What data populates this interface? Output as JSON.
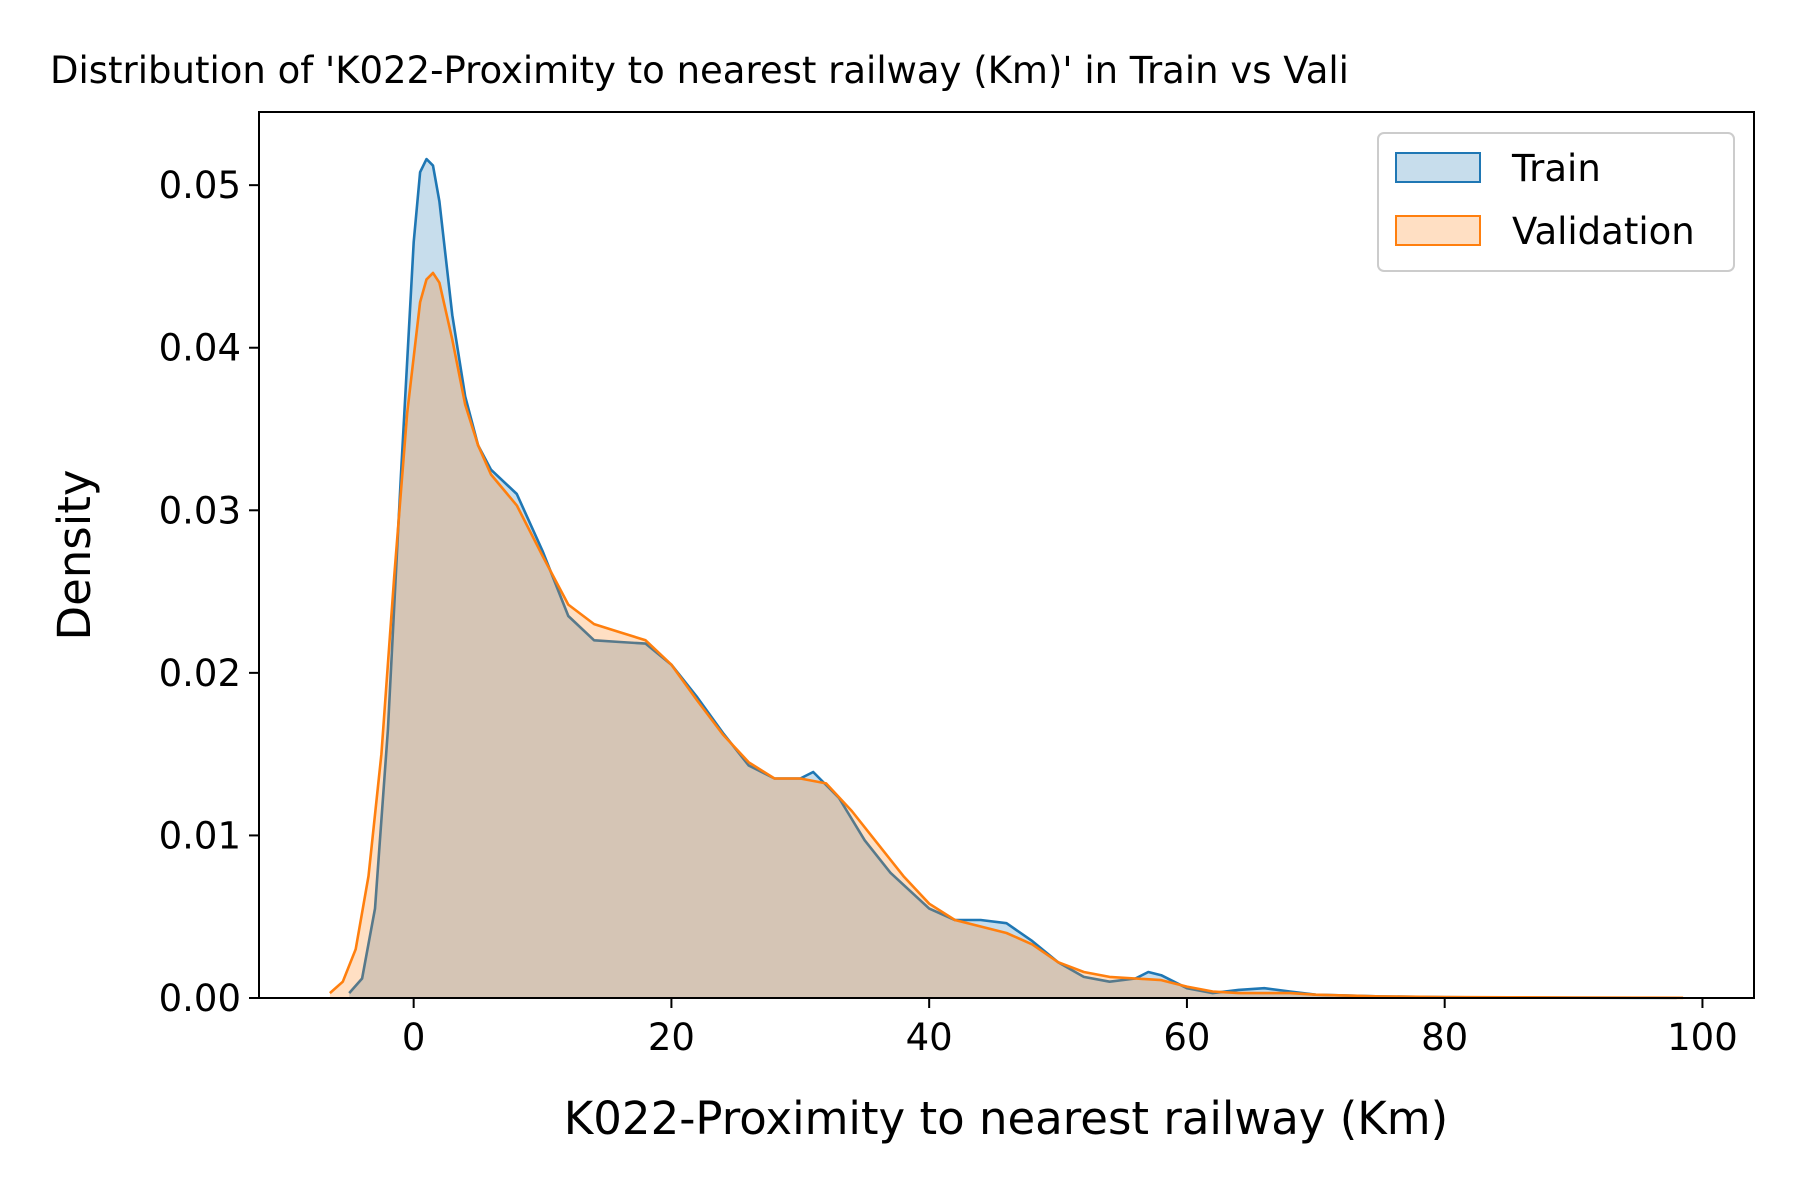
{
  "chart_data": {
    "type": "area",
    "title": "Distribution of 'K022-Proximity to nearest railway (Km)' in Train vs Vali",
    "xlabel": "K022-Proximity to nearest railway (Km)",
    "ylabel": "Density",
    "xlim": [
      -12,
      104
    ],
    "ylim": [
      0,
      0.0545
    ],
    "xticks": [
      0,
      20,
      40,
      60,
      80,
      100
    ],
    "yticks": [
      0.0,
      0.01,
      0.02,
      0.03,
      0.04,
      0.05
    ],
    "xtick_labels": [
      "0",
      "20",
      "40",
      "60",
      "80",
      "100"
    ],
    "ytick_labels": [
      "0.00",
      "0.01",
      "0.02",
      "0.03",
      "0.04",
      "0.05"
    ],
    "grid": false,
    "legend_position": "top-right",
    "series": [
      {
        "name": "Train",
        "color": "#1f77b4",
        "fill": "#1f77b4",
        "x": [
          -5,
          -4,
          -3,
          -2,
          -1,
          0,
          0.5,
          1,
          1.5,
          2,
          3,
          4,
          5,
          6,
          8,
          10,
          12,
          14,
          16,
          18,
          20,
          22,
          24,
          26,
          28,
          30,
          31,
          33,
          35,
          37,
          40,
          42,
          44,
          46,
          48,
          50,
          52,
          54,
          56,
          57,
          58,
          60,
          62,
          64,
          66,
          68,
          70,
          75,
          80,
          85,
          90,
          95,
          98
        ],
        "y": [
          0.0003,
          0.0012,
          0.0055,
          0.0165,
          0.032,
          0.0465,
          0.0508,
          0.0516,
          0.0512,
          0.049,
          0.042,
          0.037,
          0.034,
          0.0325,
          0.031,
          0.0275,
          0.0235,
          0.022,
          0.0219,
          0.0218,
          0.0205,
          0.0185,
          0.0163,
          0.0143,
          0.0135,
          0.0135,
          0.0139,
          0.0123,
          0.0097,
          0.0077,
          0.0055,
          0.0048,
          0.0048,
          0.0046,
          0.0035,
          0.0022,
          0.0013,
          0.001,
          0.0012,
          0.0016,
          0.0014,
          0.0006,
          0.0003,
          0.0005,
          0.0006,
          0.0004,
          0.0002,
          0.0001,
          5e-05,
          3e-05,
          2e-05,
          1e-05,
          1e-05
        ]
      },
      {
        "name": "Validation",
        "color": "#ff7f0e",
        "fill": "#ff7f0e",
        "x": [
          -6.5,
          -5.5,
          -4.5,
          -3.5,
          -2.5,
          -1.5,
          -0.5,
          0.5,
          1,
          1.5,
          2,
          3,
          4,
          5,
          6,
          8,
          10,
          12,
          14,
          16,
          18,
          20,
          22,
          24,
          26,
          28,
          30,
          32,
          34,
          36,
          38,
          40,
          42,
          44,
          46,
          48,
          50,
          52,
          54,
          56,
          58,
          60,
          62,
          64,
          66,
          68,
          70,
          75,
          80,
          85,
          90,
          95,
          98.5
        ],
        "y": [
          0.0003,
          0.001,
          0.003,
          0.0075,
          0.015,
          0.026,
          0.036,
          0.0428,
          0.0442,
          0.0446,
          0.044,
          0.0405,
          0.0365,
          0.034,
          0.0322,
          0.0303,
          0.0272,
          0.0242,
          0.023,
          0.0225,
          0.022,
          0.0205,
          0.0183,
          0.0162,
          0.0145,
          0.0135,
          0.0135,
          0.0132,
          0.0115,
          0.0095,
          0.0075,
          0.0058,
          0.0048,
          0.0044,
          0.004,
          0.0033,
          0.0022,
          0.0016,
          0.0013,
          0.0012,
          0.0011,
          0.0007,
          0.0004,
          0.0003,
          0.0003,
          0.0003,
          0.0002,
          0.0001,
          6e-05,
          4e-05,
          3e-05,
          2e-05,
          1e-05
        ]
      }
    ]
  }
}
